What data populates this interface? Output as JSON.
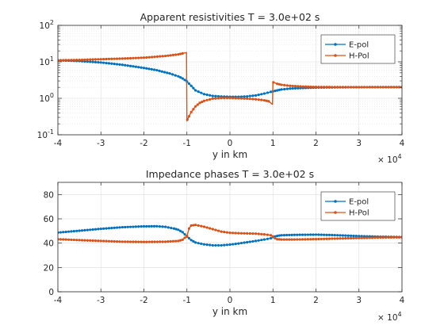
{
  "chart_data": [
    {
      "type": "line",
      "title": "Apparent resistivities T = 3.0e+02 s",
      "xlabel": "y in km",
      "ylabel": "",
      "x_multiplier_base": "× 10",
      "x_multiplier_exp": "4",
      "xlim": [
        -40000,
        40000
      ],
      "ylim": [
        0.1,
        100
      ],
      "yscale": "log",
      "grid": true,
      "minor_grid": true,
      "legend_position": "top-right",
      "x_ticks": [
        -40000,
        -30000,
        -20000,
        -10000,
        0,
        10000,
        20000,
        30000,
        40000
      ],
      "x_tick_labels": [
        "-4",
        "-3",
        "-2",
        "-1",
        "0",
        "1",
        "2",
        "3",
        "4"
      ],
      "y_ticks": [
        {
          "value": 0.1,
          "base": "10",
          "exp": "-1"
        },
        {
          "value": 1,
          "base": "10",
          "exp": "0"
        },
        {
          "value": 10,
          "base": "10",
          "exp": "1"
        },
        {
          "value": 100,
          "base": "10",
          "exp": "2"
        }
      ],
      "series": [
        {
          "name": "E-pol",
          "color": "#0072bd",
          "x": [
            -40000,
            -35000,
            -30000,
            -25000,
            -20000,
            -17000,
            -14000,
            -12000,
            -11000,
            -10000,
            -9000,
            -8000,
            -6000,
            -4000,
            -2000,
            0,
            2000,
            4000,
            6000,
            8000,
            9500,
            10000,
            11000,
            12000,
            14000,
            17000,
            20000,
            25000,
            30000,
            35000,
            40000
          ],
          "y": [
            11,
            10.5,
            9.6,
            8.3,
            6.8,
            5.9,
            4.8,
            4.0,
            3.5,
            2.9,
            2.2,
            1.65,
            1.3,
            1.16,
            1.12,
            1.1,
            1.1,
            1.13,
            1.2,
            1.35,
            1.5,
            1.55,
            1.65,
            1.75,
            1.85,
            1.92,
            1.97,
            2.0,
            2.02,
            2.03,
            2.03
          ]
        },
        {
          "name": "H-Pol",
          "color": "#d95319",
          "x": [
            -40000,
            -35000,
            -30000,
            -25000,
            -20000,
            -15000,
            -12000,
            -11000,
            -10100,
            -10000,
            -9900,
            -9500,
            -9000,
            -8000,
            -7000,
            -6000,
            -4000,
            -2000,
            0,
            2000,
            4000,
            6000,
            8000,
            9000,
            9900,
            10000,
            10100,
            11000,
            12000,
            14000,
            17000,
            20000,
            25000,
            30000,
            35000,
            40000
          ],
          "y": [
            11,
            11.3,
            11.8,
            12.3,
            13.0,
            14.5,
            16.0,
            17.0,
            18.0,
            0.24,
            0.26,
            0.32,
            0.42,
            0.6,
            0.75,
            0.85,
            0.98,
            1.02,
            1.02,
            1.0,
            0.98,
            0.94,
            0.88,
            0.83,
            0.68,
            2.7,
            2.75,
            2.5,
            2.35,
            2.2,
            2.1,
            2.05,
            2.03,
            2.02,
            2.02,
            2.02
          ]
        }
      ]
    },
    {
      "type": "line",
      "title": "Impedance phases T = 3.0e+02 s",
      "xlabel": "y in km",
      "ylabel": "",
      "x_multiplier_base": "× 10",
      "x_multiplier_exp": "4",
      "xlim": [
        -40000,
        40000
      ],
      "ylim": [
        0,
        90
      ],
      "yscale": "linear",
      "grid": true,
      "legend_position": "top-right",
      "x_ticks": [
        -40000,
        -30000,
        -20000,
        -10000,
        0,
        10000,
        20000,
        30000,
        40000
      ],
      "x_tick_labels": [
        "-4",
        "-3",
        "-2",
        "-1",
        "0",
        "1",
        "2",
        "3",
        "4"
      ],
      "y_ticks": [
        0,
        20,
        40,
        60,
        80
      ],
      "y_tick_labels": [
        "0",
        "20",
        "40",
        "60",
        "80"
      ],
      "series": [
        {
          "name": "E-pol",
          "color": "#0072bd",
          "x": [
            -40000,
            -35000,
            -30000,
            -25000,
            -20000,
            -17000,
            -15000,
            -13000,
            -12000,
            -11000,
            -10000,
            -9000,
            -8000,
            -6000,
            -4000,
            -2000,
            0,
            2000,
            4000,
            6000,
            8000,
            9500,
            10000,
            11000,
            12000,
            15000,
            20000,
            25000,
            30000,
            35000,
            40000
          ],
          "y": [
            48.7,
            50.2,
            51.8,
            53.1,
            53.8,
            53.9,
            53.4,
            52.0,
            51.0,
            49.0,
            45.5,
            42.5,
            40.5,
            39.0,
            38.2,
            38.2,
            38.8,
            39.7,
            40.8,
            41.8,
            43.0,
            44.0,
            45.0,
            46.0,
            46.5,
            46.8,
            47.0,
            46.5,
            45.8,
            45.3,
            45.0
          ]
        },
        {
          "name": "H-Pol",
          "color": "#d95319",
          "x": [
            -40000,
            -35000,
            -30000,
            -25000,
            -20000,
            -15000,
            -12000,
            -11000,
            -10000,
            -9500,
            -9000,
            -8000,
            -6000,
            -4000,
            -2000,
            0,
            2000,
            4000,
            6000,
            8000,
            9500,
            10000,
            10500,
            11000,
            12000,
            15000,
            20000,
            25000,
            30000,
            35000,
            40000
          ],
          "y": [
            43.2,
            42.5,
            41.8,
            41.2,
            41.0,
            41.2,
            41.8,
            42.8,
            46.0,
            52.0,
            54.5,
            55.0,
            53.5,
            51.5,
            49.5,
            48.5,
            48.2,
            48.0,
            47.8,
            47.2,
            46.5,
            45.5,
            44.0,
            43.2,
            43.0,
            43.0,
            43.3,
            43.8,
            44.2,
            44.6,
            44.8
          ]
        }
      ]
    }
  ]
}
